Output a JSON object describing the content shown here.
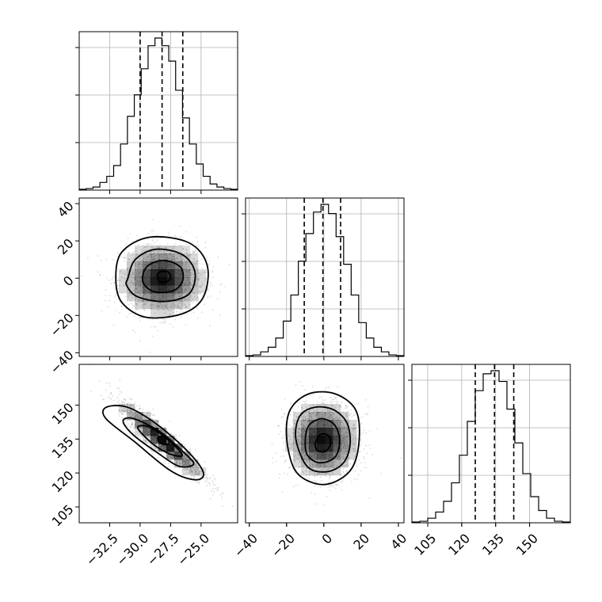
{
  "chart_data": {
    "type": "corner",
    "colors": {
      "line": "#000000",
      "grid": "#b0b0b0",
      "cell": "#000000",
      "scatter": "#9a9a9a"
    },
    "parameters": [
      {
        "range": [
          -35.0,
          -22.0
        ],
        "ticks": [
          -32.5,
          -30.0,
          -27.5,
          -25.0
        ],
        "tick_labels": [
          "−32.5",
          "−30.0",
          "−27.5",
          "−25.0"
        ],
        "quantiles": [
          -30.0,
          -28.2,
          -26.5
        ],
        "hist": [
          0.5,
          1,
          2,
          5,
          9,
          16,
          30,
          48,
          62,
          79,
          94,
          99,
          94,
          84,
          65,
          47,
          30,
          17,
          9,
          4,
          2,
          1,
          0.5
        ]
      },
      {
        "range": [
          -42.0,
          43.0
        ],
        "ticks": [
          -40,
          -20,
          0,
          20,
          40
        ],
        "tick_labels": [
          "−40",
          "−20",
          "0",
          "20",
          "40"
        ],
        "quantiles": [
          -10.5,
          -0.5,
          9.0
        ],
        "hist": [
          0.5,
          1,
          3,
          6,
          12,
          23,
          40,
          62,
          80,
          94,
          99,
          93,
          78,
          60,
          40,
          22,
          12,
          6,
          3,
          1,
          0.5
        ]
      },
      {
        "range": [
          98.0,
          168.0
        ],
        "ticks": [
          105,
          120,
          135,
          150
        ],
        "tick_labels": [
          "105",
          "120",
          "135",
          "150"
        ],
        "quantiles": [
          126.0,
          134.5,
          143.0
        ],
        "hist": [
          0.5,
          1,
          3,
          7,
          14,
          26,
          44,
          66,
          86,
          97,
          99,
          92,
          74,
          52,
          32,
          17,
          8,
          3,
          1,
          0.5
        ]
      }
    ],
    "pairs": [
      {
        "x": 0,
        "y": 1,
        "corr": 0.0,
        "contours": [
          [
            [
              -32.0,
              0
            ],
            [
              -31.5,
              14
            ],
            [
              -29.2,
              22
            ],
            [
              -26.0,
              19
            ],
            [
              -24.5,
              7
            ],
            [
              -24.8,
              -10
            ],
            [
              -26.5,
              -19
            ],
            [
              -29.5,
              -21
            ],
            [
              -31.5,
              -13
            ]
          ],
          [
            [
              -31.0,
              0
            ],
            [
              -30.4,
              10
            ],
            [
              -28.7,
              15.5
            ],
            [
              -26.5,
              12.5
            ],
            [
              -25.5,
              3
            ],
            [
              -26.0,
              -8.5
            ],
            [
              -28.0,
              -12.5
            ],
            [
              -30.2,
              -10
            ],
            [
              -31.1,
              -4
            ]
          ],
          [
            [
              -29.8,
              1
            ],
            [
              -29.3,
              7
            ],
            [
              -28.0,
              9.5
            ],
            [
              -26.7,
              6
            ],
            [
              -26.5,
              -1
            ],
            [
              -27.2,
              -6.5
            ],
            [
              -28.7,
              -7.5
            ],
            [
              -29.6,
              -4
            ]
          ],
          [
            [
              -28.6,
              1.5
            ],
            [
              -28.3,
              3.5
            ],
            [
              -27.7,
              3.3
            ],
            [
              -27.5,
              0.5
            ],
            [
              -27.8,
              -1.8
            ],
            [
              -28.4,
              -1.8
            ]
          ]
        ]
      },
      {
        "x": 0,
        "y": 2,
        "corr": -0.93,
        "contours": [
          [
            [
              -32.8,
              149
            ],
            [
              -31.0,
              149
            ],
            [
              -28.5,
              141
            ],
            [
              -26.0,
              129
            ],
            [
              -24.8,
              120
            ],
            [
              -25.5,
              117
            ],
            [
              -27.5,
              121
            ],
            [
              -30.5,
              134
            ],
            [
              -32.8,
              144
            ]
          ],
          [
            [
              -31.4,
              143
            ],
            [
              -30.5,
              144
            ],
            [
              -28.3,
              138
            ],
            [
              -26.4,
              129
            ],
            [
              -25.6,
              124
            ],
            [
              -26.8,
              123
            ],
            [
              -28.6,
              129
            ],
            [
              -30.6,
              137
            ]
          ],
          [
            [
              -30.2,
              140
            ],
            [
              -29.3,
              140.5
            ],
            [
              -28.0,
              136
            ],
            [
              -26.8,
              130
            ],
            [
              -26.6,
              127.5
            ],
            [
              -27.6,
              128.5
            ],
            [
              -29.0,
              133
            ]
          ],
          [
            [
              -28.5,
              136
            ],
            [
              -28.0,
              136
            ],
            [
              -27.6,
              133.5
            ],
            [
              -28.0,
              132.5
            ],
            [
              -28.5,
              134
            ]
          ]
        ]
      },
      {
        "x": 1,
        "y": 2,
        "corr": 0.0,
        "contours": [
          [
            [
              -20.0,
              136
            ],
            [
              -18.0,
              148
            ],
            [
              -8.0,
              155
            ],
            [
              6.0,
              155
            ],
            [
              17.0,
              148
            ],
            [
              19.0,
              135
            ],
            [
              15.0,
              122
            ],
            [
              4.0,
              115.5
            ],
            [
              -7.0,
              116
            ],
            [
              -16.0,
              122
            ]
          ],
          [
            [
              -15.0,
              135
            ],
            [
              -13.0,
              145
            ],
            [
              -5.0,
              149
            ],
            [
              5.0,
              148
            ],
            [
              12.5,
              142
            ],
            [
              14.0,
              132
            ],
            [
              10.0,
              124
            ],
            [
              1.0,
              120.5
            ],
            [
              -9.0,
              123
            ]
          ],
          [
            [
              -10.0,
              134
            ],
            [
              -8.0,
              141
            ],
            [
              -1.0,
              144
            ],
            [
              6.0,
              141
            ],
            [
              8.5,
              134
            ],
            [
              6.0,
              127
            ],
            [
              -2.0,
              124.5
            ],
            [
              -8.5,
              127.5
            ]
          ],
          [
            [
              -4.5,
              133
            ],
            [
              -2.0,
              137
            ],
            [
              2.5,
              136.5
            ],
            [
              3.5,
              132.5
            ],
            [
              0.5,
              129.5
            ],
            [
              -3.5,
              130
            ]
          ]
        ]
      }
    ]
  }
}
